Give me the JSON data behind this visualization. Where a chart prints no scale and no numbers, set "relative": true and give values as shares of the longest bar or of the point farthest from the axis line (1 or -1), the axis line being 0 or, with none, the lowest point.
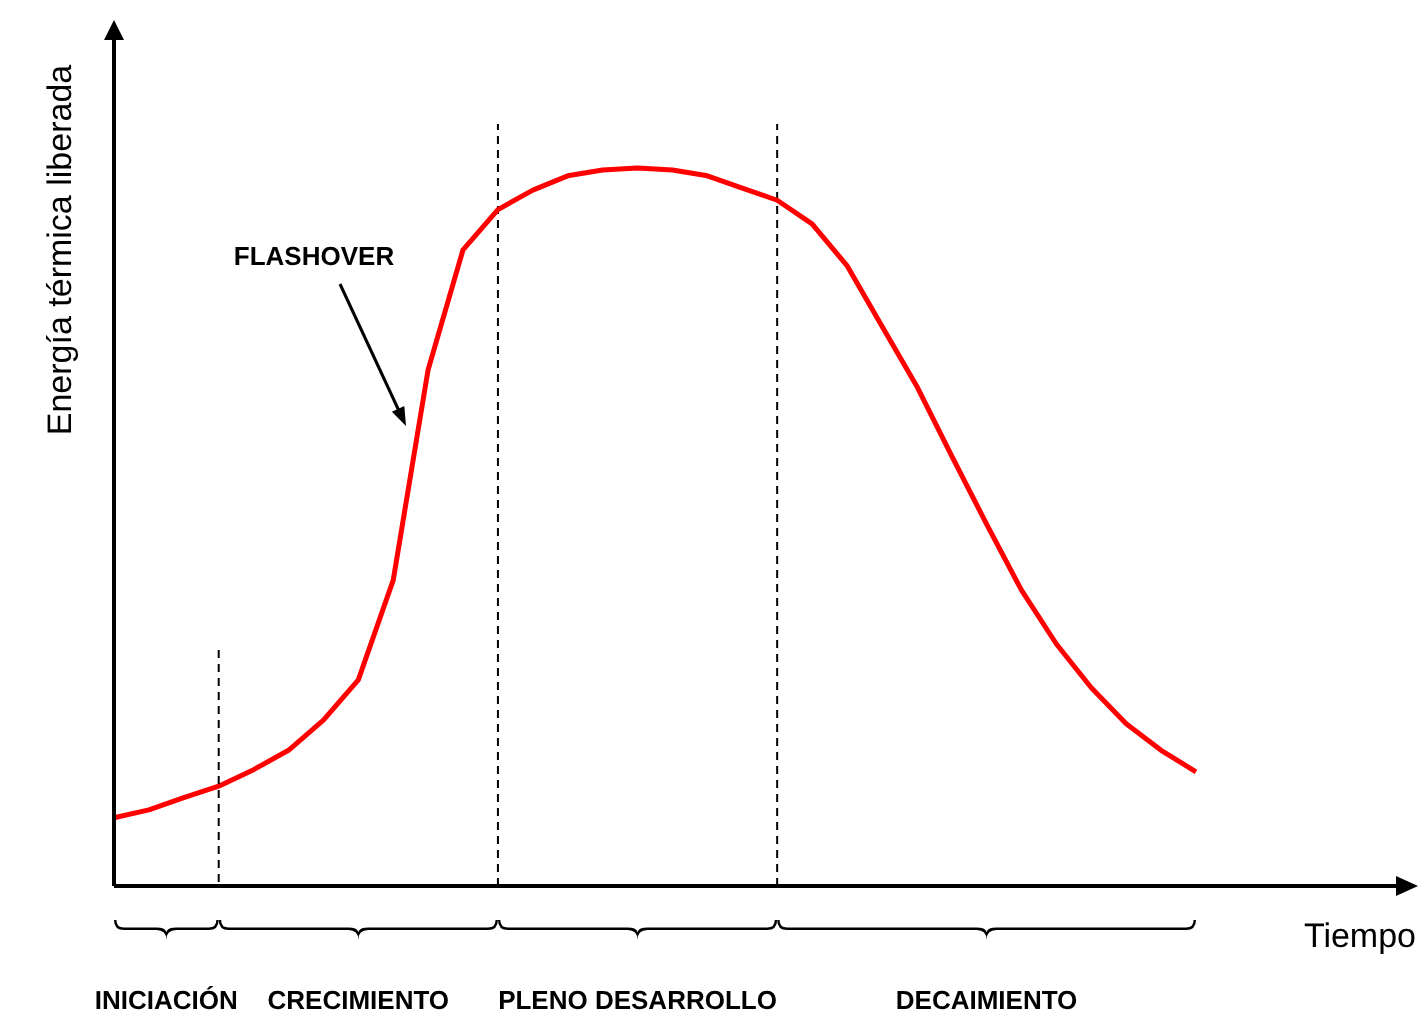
{
  "chart_data": {
    "type": "line",
    "relative": true,
    "ylabel": "Energía térmica liberada",
    "xlabel": "Tiempo",
    "marker": "none",
    "line_style": "solid",
    "categories": [
      null,
      null,
      null,
      null,
      null,
      null,
      null,
      null,
      null,
      null,
      null,
      null,
      null,
      null,
      null,
      null,
      null,
      null,
      null,
      null,
      null,
      null,
      null,
      null,
      null,
      null,
      null,
      null,
      null,
      null,
      null,
      null
    ],
    "series": [
      {
        "color": "#ff0000",
        "values": [
          0.095,
          0.106,
          0.123,
          0.139,
          0.162,
          0.189,
          0.231,
          0.287,
          0.426,
          0.719,
          0.886,
          0.942,
          0.969,
          0.989,
          0.997,
          1,
          0.997,
          0.989,
          0.972,
          0.955,
          0.922,
          0.864,
          0.78,
          0.696,
          0.599,
          0.504,
          0.412,
          0.337,
          0.276,
          0.226,
          0.189,
          0.159
        ]
      }
    ],
    "annotations": [
      "FLASHOVER",
      "INICIACIÓN",
      "CRECIMIENTO",
      "PLENO DESARROLLO",
      "DECAIMIENTO"
    ]
  }
}
